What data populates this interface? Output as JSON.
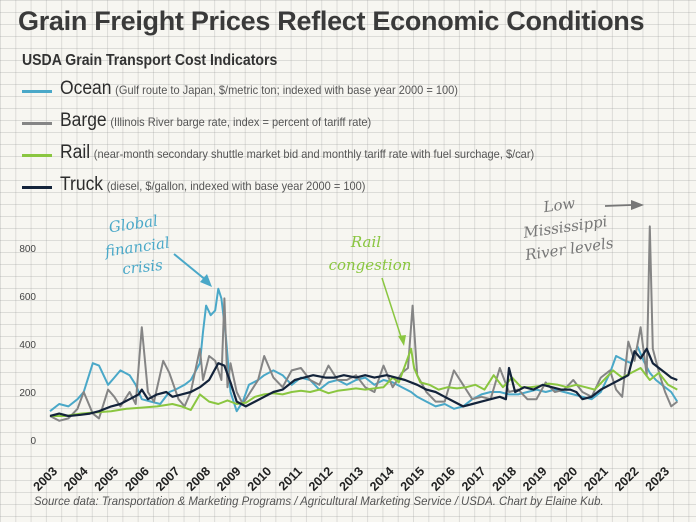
{
  "title": "Grain Freight Prices Reflect Economic Conditions",
  "subtitle": "USDA Grain Transport Cost Indicators",
  "legend": [
    {
      "name": "Ocean",
      "desc": "(Gulf route to Japan, $/metric ton; indexed with base year 2000 = 100)",
      "color": "#4aa8c8"
    },
    {
      "name": "Barge",
      "desc": "(Illinois River barge rate, index = percent of tariff rate)",
      "color": "#858585"
    },
    {
      "name": "Rail",
      "desc": "(near-month secondary shuttle market bid and monthly tariff rate with fuel surchage, $/car)",
      "color": "#8ac640"
    },
    {
      "name": "Truck",
      "desc": "(diesel, $/gallon, indexed with base year 2000 = 100)",
      "color": "#13233a"
    }
  ],
  "source": "Source data: Transportation & Marketing Programs / Agricultural Marketing Service / USDA. Chart by Elaine Kub.",
  "annotations": [
    {
      "id": "gfc",
      "lines": [
        "Global",
        "financial",
        "crisis"
      ],
      "color": "#4aa8c8"
    },
    {
      "id": "rail",
      "lines": [
        "Rail",
        "congestion"
      ],
      "color": "#8ac640"
    },
    {
      "id": "river",
      "lines": [
        "Low",
        "Mississippi",
        "River levels"
      ],
      "color": "#777777"
    }
  ],
  "chart_data": {
    "type": "line",
    "title": "Grain Freight Prices Reflect Economic Conditions",
    "subtitle": "USDA Grain Transport Cost Indicators",
    "xlabel": "",
    "ylabel": "",
    "xlim": [
      2003,
      2023.6
    ],
    "ylim": [
      0,
      800
    ],
    "yticks": [
      0,
      200,
      400,
      600,
      800
    ],
    "xticks": [
      "2003",
      "2004",
      "2005",
      "2006",
      "2007",
      "2008",
      "2009",
      "2010",
      "2011",
      "2012",
      "2013",
      "2014",
      "2015",
      "2016",
      "2017",
      "2018",
      "2019",
      "2020",
      "2021",
      "2022",
      "2023"
    ],
    "grid": true,
    "legend_position": "top-left",
    "series": [
      {
        "name": "Ocean",
        "color": "#4aa8c8",
        "x": [
          2003.0,
          2003.3,
          2003.6,
          2003.9,
          2004.1,
          2004.4,
          2004.6,
          2004.9,
          2005.1,
          2005.3,
          2005.6,
          2005.8,
          2006.0,
          2006.3,
          2006.6,
          2006.9,
          2007.1,
          2007.4,
          2007.6,
          2007.9,
          2008.0,
          2008.1,
          2008.25,
          2008.4,
          2008.5,
          2008.6,
          2008.75,
          2008.9,
          2009.1,
          2009.3,
          2009.5,
          2009.8,
          2010.0,
          2010.3,
          2010.6,
          2010.9,
          2011.2,
          2011.5,
          2011.8,
          2012.1,
          2012.4,
          2012.7,
          2013.0,
          2013.3,
          2013.6,
          2013.9,
          2014.2,
          2014.5,
          2014.8,
          2015.0,
          2015.3,
          2015.6,
          2015.9,
          2016.2,
          2016.5,
          2016.8,
          2017.1,
          2017.4,
          2017.7,
          2018.0,
          2018.3,
          2018.6,
          2018.9,
          2019.2,
          2019.5,
          2019.8,
          2020.1,
          2020.4,
          2020.7,
          2021.0,
          2021.3,
          2021.5,
          2021.8,
          2022.0,
          2022.2,
          2022.4,
          2022.6,
          2022.8,
          2023.0,
          2023.3,
          2023.5
        ],
        "y": [
          120,
          150,
          140,
          170,
          200,
          320,
          310,
          230,
          260,
          290,
          270,
          230,
          170,
          160,
          150,
          200,
          210,
          230,
          250,
          320,
          450,
          560,
          520,
          540,
          630,
          590,
          430,
          200,
          120,
          160,
          230,
          250,
          270,
          290,
          270,
          230,
          260,
          250,
          210,
          240,
          250,
          230,
          250,
          260,
          230,
          250,
          240,
          220,
          200,
          180,
          160,
          140,
          150,
          130,
          140,
          170,
          190,
          200,
          200,
          190,
          190,
          200,
          210,
          200,
          210,
          200,
          190,
          180,
          170,
          200,
          280,
          350,
          330,
          320,
          390,
          330,
          280,
          250,
          230,
          200,
          160
        ]
      },
      {
        "name": "Barge",
        "color": "#858585",
        "x": [
          2003.0,
          2003.3,
          2003.6,
          2003.9,
          2004.1,
          2004.4,
          2004.6,
          2004.9,
          2005.1,
          2005.3,
          2005.6,
          2005.8,
          2006.0,
          2006.2,
          2006.4,
          2006.7,
          2006.9,
          2007.2,
          2007.4,
          2007.6,
          2007.9,
          2008.0,
          2008.2,
          2008.4,
          2008.6,
          2008.7,
          2008.8,
          2008.9,
          2009.1,
          2009.3,
          2009.5,
          2009.8,
          2010.0,
          2010.3,
          2010.6,
          2010.9,
          2011.2,
          2011.5,
          2011.8,
          2012.1,
          2012.4,
          2012.7,
          2013.0,
          2013.3,
          2013.6,
          2013.9,
          2014.2,
          2014.5,
          2014.7,
          2014.85,
          2015.0,
          2015.3,
          2015.6,
          2015.9,
          2016.2,
          2016.5,
          2016.8,
          2017.1,
          2017.4,
          2017.7,
          2018.0,
          2018.3,
          2018.6,
          2018.9,
          2019.2,
          2019.5,
          2019.8,
          2020.1,
          2020.4,
          2020.7,
          2021.0,
          2021.3,
          2021.5,
          2021.7,
          2021.9,
          2022.1,
          2022.3,
          2022.5,
          2022.6,
          2022.7,
          2022.8,
          2022.95,
          2023.1,
          2023.3,
          2023.5
        ],
        "y": [
          100,
          80,
          90,
          130,
          200,
          110,
          90,
          210,
          180,
          140,
          200,
          150,
          470,
          200,
          160,
          330,
          280,
          170,
          140,
          200,
          380,
          250,
          350,
          330,
          250,
          590,
          220,
          320,
          200,
          150,
          190,
          250,
          350,
          260,
          220,
          290,
          300,
          250,
          230,
          310,
          250,
          250,
          270,
          220,
          200,
          310,
          220,
          280,
          300,
          560,
          270,
          200,
          160,
          160,
          290,
          230,
          170,
          180,
          170,
          300,
          200,
          210,
          170,
          170,
          240,
          200,
          210,
          250,
          200,
          180,
          260,
          290,
          210,
          180,
          410,
          330,
          470,
          270,
          890,
          380,
          330,
          260,
          200,
          140,
          160
        ]
      },
      {
        "name": "Rail",
        "color": "#8ac640",
        "x": [
          2003.0,
          2003.5,
          2004.0,
          2004.5,
          2005.0,
          2005.5,
          2006.0,
          2006.5,
          2007.0,
          2007.3,
          2007.6,
          2007.9,
          2008.2,
          2008.5,
          2008.8,
          2009.1,
          2009.4,
          2009.7,
          2010.0,
          2010.3,
          2010.6,
          2010.9,
          2011.2,
          2011.5,
          2011.8,
          2012.1,
          2012.4,
          2012.7,
          2013.0,
          2013.3,
          2013.6,
          2013.9,
          2014.2,
          2014.4,
          2014.6,
          2014.8,
          2014.9,
          2015.1,
          2015.4,
          2015.7,
          2016.0,
          2016.3,
          2016.6,
          2016.9,
          2017.2,
          2017.5,
          2017.8,
          2018.1,
          2018.4,
          2018.7,
          2019.0,
          2019.3,
          2019.6,
          2019.9,
          2020.2,
          2020.5,
          2020.8,
          2021.1,
          2021.4,
          2021.7,
          2022.0,
          2022.3,
          2022.6,
          2022.9,
          2023.2,
          2023.5
        ],
        "y": [
          100,
          100,
          110,
          115,
          120,
          130,
          135,
          140,
          150,
          140,
          125,
          190,
          160,
          150,
          165,
          150,
          155,
          180,
          190,
          195,
          190,
          200,
          205,
          200,
          210,
          195,
          205,
          210,
          215,
          210,
          215,
          220,
          260,
          240,
          310,
          380,
          300,
          240,
          230,
          210,
          220,
          215,
          220,
          230,
          210,
          270,
          220,
          260,
          220,
          220,
          225,
          235,
          230,
          220,
          230,
          220,
          210,
          250,
          290,
          260,
          280,
          300,
          250,
          280,
          230,
          210
        ]
      },
      {
        "name": "Truck",
        "color": "#13233a",
        "x": [
          2003.0,
          2003.3,
          2003.6,
          2004.0,
          2004.3,
          2004.6,
          2005.0,
          2005.3,
          2005.6,
          2005.9,
          2006.0,
          2006.2,
          2006.5,
          2006.8,
          2007.0,
          2007.3,
          2007.6,
          2007.9,
          2008.2,
          2008.5,
          2008.7,
          2008.9,
          2009.1,
          2009.4,
          2009.7,
          2010.0,
          2010.3,
          2010.6,
          2011.0,
          2011.3,
          2011.6,
          2012.0,
          2012.3,
          2012.6,
          2013.0,
          2013.3,
          2013.6,
          2014.0,
          2014.3,
          2014.6,
          2015.0,
          2015.3,
          2015.6,
          2015.9,
          2016.2,
          2016.5,
          2016.8,
          2017.1,
          2017.4,
          2017.7,
          2017.9,
          2018.0,
          2018.2,
          2018.5,
          2018.8,
          2019.1,
          2019.4,
          2019.7,
          2020.0,
          2020.2,
          2020.4,
          2020.7,
          2021.0,
          2021.3,
          2021.6,
          2021.9,
          2022.1,
          2022.3,
          2022.5,
          2022.7,
          2022.9,
          2023.1,
          2023.3,
          2023.5
        ],
        "y": [
          100,
          110,
          100,
          105,
          110,
          120,
          140,
          150,
          170,
          190,
          210,
          170,
          190,
          200,
          180,
          190,
          200,
          220,
          250,
          320,
          310,
          240,
          160,
          140,
          160,
          180,
          200,
          210,
          250,
          260,
          270,
          260,
          260,
          270,
          260,
          270,
          260,
          270,
          260,
          250,
          230,
          210,
          200,
          180,
          160,
          140,
          150,
          160,
          170,
          180,
          170,
          300,
          200,
          220,
          210,
          230,
          220,
          210,
          210,
          200,
          170,
          180,
          210,
          230,
          250,
          270,
          370,
          340,
          380,
          320,
          300,
          280,
          260,
          250
        ]
      }
    ]
  }
}
